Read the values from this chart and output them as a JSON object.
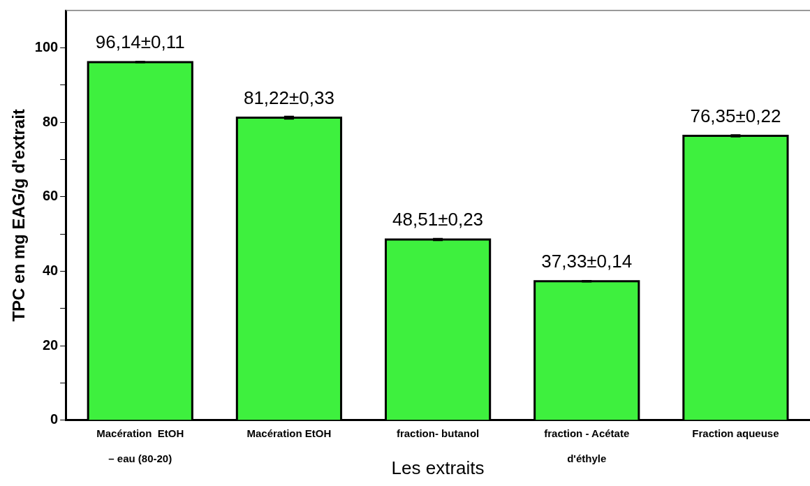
{
  "chart_data": {
    "type": "bar",
    "xlabel": "Les extraits",
    "ylabel": "TPC en mg EAG/g d'extrait",
    "categories": [
      "Macération  EtOH\n– eau (80-20)",
      "Macération EtOH",
      "fraction- butanol",
      "fraction - Acétate\nd'éthyle",
      "Fraction aqueuse"
    ],
    "values": [
      96.14,
      81.22,
      48.51,
      37.33,
      76.35
    ],
    "errors": [
      0.11,
      0.33,
      0.23,
      0.14,
      0.22
    ],
    "value_labels": [
      "96,14±0,11",
      "81,22±0,33",
      "48,51±0,23",
      "37,33±0,14",
      "76,35±0,22"
    ],
    "color": "#3ef03e",
    "ylim": [
      0,
      110
    ],
    "yticks": [
      0,
      {
        "value": 10,
        "label": null
      },
      20,
      {
        "value": 30,
        "label": null
      },
      40,
      {
        "value": 50,
        "label": null
      },
      60,
      {
        "value": 70,
        "label": null
      },
      80,
      {
        "value": 90,
        "label": null
      },
      100
    ],
    "grid": false
  }
}
